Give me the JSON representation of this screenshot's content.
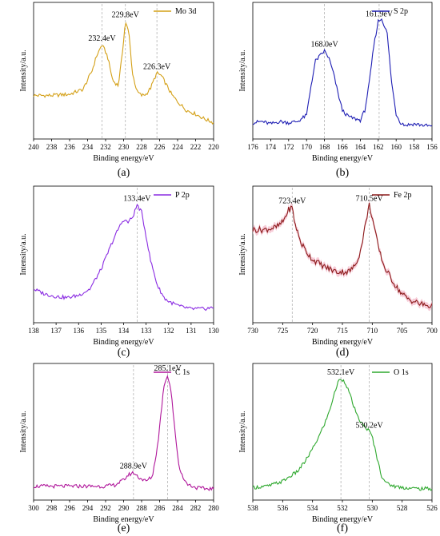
{
  "chart_data": [
    {
      "type": "line",
      "caption": "(a)",
      "xlabel": "Binding energy/eV",
      "ylabel": "Intensity/a.u.",
      "xlim": [
        240,
        220
      ],
      "x_ticks": [
        "240",
        "238",
        "236",
        "234",
        "232",
        "230",
        "228",
        "226",
        "224",
        "222",
        "220"
      ],
      "x_reversed": true,
      "color": "#d4a017",
      "fill": false,
      "legend": "Mo 3d",
      "legend_position": "top-right",
      "ylim": [
        0,
        100
      ],
      "peaks": [
        {
          "x": 232.4,
          "label": "232.4eV"
        },
        {
          "x": 229.8,
          "label": "229.8eV"
        },
        {
          "x": 226.3,
          "label": "226.3eV"
        }
      ],
      "series": [
        {
          "x": [
            240,
            238,
            236,
            234.5,
            233.5,
            233,
            232.4,
            231.8,
            231.2,
            230.6,
            230.2,
            229.8,
            229.4,
            229,
            228.5,
            228,
            227.5,
            227,
            226.5,
            226.3,
            225.8,
            225.2,
            224.6,
            224,
            223,
            222,
            221,
            220
          ],
          "y": [
            30,
            30,
            31,
            35,
            50,
            62,
            71,
            62,
            42,
            38,
            60,
            90,
            80,
            47,
            33,
            30,
            31,
            36,
            45,
            48,
            46,
            38,
            30,
            25,
            18,
            15,
            11,
            8
          ]
        }
      ]
    },
    {
      "type": "line",
      "caption": "(b)",
      "xlabel": "Binding energy/eV",
      "ylabel": "Intensity/a.u.",
      "xlim": [
        176,
        156
      ],
      "x_ticks": [
        "176",
        "174",
        "172",
        "170",
        "168",
        "166",
        "164",
        "162",
        "160",
        "158",
        "156"
      ],
      "x_reversed": true,
      "color": "#1f1fb4",
      "fill": false,
      "legend": "S 2p",
      "legend_position": "top-right",
      "ylim": [
        0,
        100
      ],
      "peaks": [
        {
          "x": 168.0,
          "label": "168.0eV"
        },
        {
          "x": 161.9,
          "label": "161.9eV"
        }
      ],
      "series": [
        {
          "x": [
            176,
            175,
            174,
            173,
            172,
            171,
            170,
            169.5,
            169,
            168.5,
            168,
            167.5,
            167,
            166.5,
            166,
            165.5,
            165,
            164,
            163.5,
            163,
            162.5,
            162,
            161.6,
            161,
            160.5,
            160,
            159.5,
            159,
            158,
            157,
            156
          ],
          "y": [
            8,
            9,
            7,
            9,
            8,
            9,
            14,
            38,
            58,
            62,
            66,
            60,
            48,
            32,
            18,
            14,
            12,
            10,
            18,
            40,
            70,
            90,
            92,
            80,
            40,
            15,
            8,
            6,
            7,
            6,
            5
          ]
        }
      ]
    },
    {
      "type": "line",
      "caption": "(c)",
      "xlabel": "Binding energy/eV",
      "ylabel": "Intensity/a.u.",
      "xlim": [
        138,
        130
      ],
      "x_ticks": [
        "138",
        "137",
        "136",
        "135",
        "134",
        "133",
        "132",
        "131",
        "130"
      ],
      "x_reversed": true,
      "color": "#8a2be2",
      "fill": false,
      "legend": "P 2p",
      "legend_position": "top-right",
      "ylim": [
        0,
        100
      ],
      "peaks": [
        {
          "x": 133.4,
          "label": "133.4eV"
        }
      ],
      "series": [
        {
          "x": [
            138,
            137.5,
            137,
            136.5,
            136,
            135.5,
            135,
            134.5,
            134.2,
            134,
            133.8,
            133.6,
            133.4,
            133.2,
            133,
            132.8,
            132.5,
            132.2,
            132,
            131.5,
            131,
            130.5,
            130
          ],
          "y": [
            22,
            18,
            16,
            15,
            17,
            22,
            38,
            60,
            72,
            78,
            76,
            80,
            90,
            84,
            65,
            45,
            25,
            15,
            12,
            8,
            6,
            6,
            7
          ]
        }
      ]
    },
    {
      "type": "line",
      "caption": "(d)",
      "xlabel": "Binding energy/eV",
      "ylabel": "Intensity/a.u.",
      "xlim": [
        730,
        700
      ],
      "x_ticks": [
        "730",
        "725",
        "720",
        "715",
        "710",
        "705",
        "700"
      ],
      "x_reversed": true,
      "color": "#8b1a1a",
      "fill": true,
      "legend": "Fe 2p",
      "legend_position": "top-right",
      "ylim": [
        0,
        100
      ],
      "peaks": [
        {
          "x": 723.4,
          "label": "723.4eV"
        },
        {
          "x": 710.5,
          "label": "710.5eV"
        }
      ],
      "series": [
        {
          "x": [
            730,
            728,
            726,
            725,
            724,
            723.4,
            723,
            722,
            721,
            720,
            718,
            716,
            714,
            713,
            712,
            711,
            710.5,
            710,
            709,
            708,
            707,
            706,
            705,
            704,
            703,
            702,
            701,
            700
          ],
          "y": [
            70,
            70,
            72,
            76,
            86,
            88,
            76,
            60,
            52,
            46,
            40,
            36,
            36,
            40,
            52,
            78,
            90,
            80,
            56,
            40,
            32,
            24,
            18,
            14,
            12,
            10,
            9,
            8
          ]
        }
      ]
    },
    {
      "type": "line",
      "caption": "(e)",
      "xlabel": "Binding energy/eV",
      "ylabel": "Intensity/a.u.",
      "xlim": [
        300,
        280
      ],
      "x_ticks": [
        "300",
        "298",
        "296",
        "294",
        "292",
        "290",
        "288",
        "286",
        "284",
        "282",
        "280"
      ],
      "x_reversed": true,
      "color": "#b0179b",
      "fill": false,
      "legend": "C 1s",
      "legend_position": "top-right",
      "ylim": [
        0,
        100
      ],
      "peaks": [
        {
          "x": 288.9,
          "label": "288.9eV"
        },
        {
          "x": 285.1,
          "label": "285.1eV"
        }
      ],
      "series": [
        {
          "x": [
            300,
            298,
            296,
            294,
            292,
            291,
            290,
            289.5,
            288.9,
            288.3,
            287.5,
            286.8,
            286.2,
            285.8,
            285.5,
            285.1,
            284.7,
            284.3,
            283.8,
            283,
            282,
            281,
            280
          ],
          "y": [
            6,
            6,
            6,
            6,
            6,
            7,
            11,
            15,
            17,
            13,
            10,
            14,
            40,
            68,
            88,
            96,
            82,
            50,
            20,
            8,
            5,
            4,
            4
          ]
        }
      ]
    },
    {
      "type": "line",
      "caption": "(f)",
      "xlabel": "Binding energy/eV",
      "ylabel": "Intensity/a.u.",
      "xlim": [
        538,
        526
      ],
      "x_ticks": [
        "538",
        "536",
        "534",
        "532",
        "530",
        "528",
        "526"
      ],
      "x_reversed": true,
      "color": "#2ea82e",
      "fill": false,
      "legend": "O 1s",
      "legend_position": "top-right",
      "ylim": [
        0,
        100
      ],
      "peaks": [
        {
          "x": 532.1,
          "label": "532.1eV"
        },
        {
          "x": 530.2,
          "label": "530.2eV"
        }
      ],
      "series": [
        {
          "x": [
            538,
            537,
            536,
            535,
            534.5,
            534,
            533.5,
            533,
            532.6,
            532.3,
            532.1,
            531.8,
            531.5,
            531,
            530.6,
            530.3,
            530,
            529.7,
            529.4,
            529,
            528.5,
            528,
            527,
            526
          ],
          "y": [
            5,
            6,
            10,
            18,
            26,
            36,
            48,
            62,
            78,
            90,
            93,
            90,
            80,
            62,
            55,
            52,
            46,
            30,
            15,
            8,
            6,
            5,
            4,
            4
          ]
        }
      ]
    }
  ]
}
